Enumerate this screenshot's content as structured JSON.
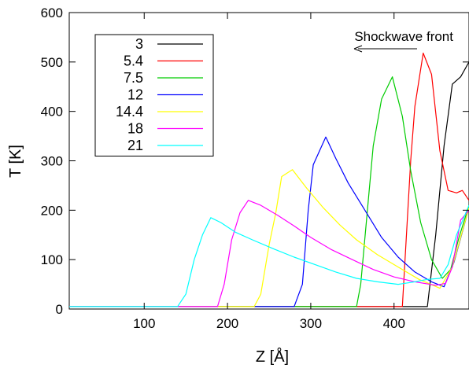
{
  "chart_data": {
    "type": "line",
    "title": "",
    "xlabel": "Z [Å]",
    "ylabel": "T [K]",
    "xlim": [
      10,
      490
    ],
    "ylim": [
      0,
      600
    ],
    "x_ticks": [
      100,
      200,
      300,
      400
    ],
    "y_ticks": [
      0,
      100,
      200,
      300,
      400,
      500,
      600
    ],
    "grid": false,
    "legend_position": "top-left",
    "annotation": {
      "text": "Shockwave front",
      "arrow_direction": "left"
    },
    "series": [
      {
        "name": "3",
        "color": "#000000",
        "points": [
          [
            10,
            5
          ],
          [
            430,
            5
          ],
          [
            440,
            5
          ],
          [
            450,
            150
          ],
          [
            460,
            330
          ],
          [
            470,
            455
          ],
          [
            480,
            470
          ],
          [
            490,
            500
          ]
        ]
      },
      {
        "name": "5.4",
        "color": "#ff0000",
        "points": [
          [
            10,
            5
          ],
          [
            410,
            5
          ],
          [
            420,
            300
          ],
          [
            425,
            410
          ],
          [
            435,
            518
          ],
          [
            445,
            475
          ],
          [
            455,
            320
          ],
          [
            465,
            240
          ],
          [
            475,
            235
          ],
          [
            482,
            240
          ],
          [
            490,
            220
          ]
        ]
      },
      {
        "name": "7.5",
        "color": "#00cc00",
        "points": [
          [
            10,
            5
          ],
          [
            355,
            5
          ],
          [
            360,
            50
          ],
          [
            368,
            200
          ],
          [
            375,
            330
          ],
          [
            385,
            425
          ],
          [
            398,
            470
          ],
          [
            410,
            390
          ],
          [
            420,
            280
          ],
          [
            432,
            175
          ],
          [
            445,
            100
          ],
          [
            458,
            62
          ],
          [
            468,
            80
          ],
          [
            478,
            145
          ],
          [
            490,
            210
          ]
        ]
      },
      {
        "name": "12",
        "color": "#0000ff",
        "points": [
          [
            10,
            5
          ],
          [
            280,
            5
          ],
          [
            290,
            50
          ],
          [
            297,
            200
          ],
          [
            303,
            292
          ],
          [
            318,
            348
          ],
          [
            330,
            305
          ],
          [
            345,
            255
          ],
          [
            365,
            200
          ],
          [
            385,
            145
          ],
          [
            405,
            105
          ],
          [
            425,
            75
          ],
          [
            445,
            55
          ],
          [
            460,
            45
          ],
          [
            472,
            95
          ],
          [
            490,
            205
          ]
        ]
      },
      {
        "name": "14.4",
        "color": "#ffff00",
        "points": [
          [
            10,
            5
          ],
          [
            232,
            5
          ],
          [
            240,
            30
          ],
          [
            250,
            130
          ],
          [
            258,
            195
          ],
          [
            265,
            268
          ],
          [
            278,
            282
          ],
          [
            295,
            245
          ],
          [
            315,
            205
          ],
          [
            335,
            170
          ],
          [
            355,
            140
          ],
          [
            380,
            110
          ],
          [
            405,
            85
          ],
          [
            430,
            60
          ],
          [
            455,
            42
          ],
          [
            470,
            85
          ],
          [
            490,
            205
          ]
        ]
      },
      {
        "name": "18",
        "color": "#ff00ff",
        "points": [
          [
            10,
            5
          ],
          [
            188,
            5
          ],
          [
            196,
            50
          ],
          [
            205,
            140
          ],
          [
            215,
            195
          ],
          [
            225,
            220
          ],
          [
            240,
            210
          ],
          [
            260,
            190
          ],
          [
            280,
            168
          ],
          [
            300,
            145
          ],
          [
            325,
            120
          ],
          [
            350,
            100
          ],
          [
            375,
            80
          ],
          [
            400,
            65
          ],
          [
            425,
            55
          ],
          [
            450,
            48
          ],
          [
            462,
            52
          ],
          [
            470,
            85
          ],
          [
            480,
            180
          ],
          [
            490,
            200
          ]
        ]
      },
      {
        "name": "21",
        "color": "#00ffff",
        "points": [
          [
            10,
            5
          ],
          [
            140,
            5
          ],
          [
            150,
            30
          ],
          [
            160,
            100
          ],
          [
            170,
            150
          ],
          [
            180,
            185
          ],
          [
            192,
            175
          ],
          [
            210,
            155
          ],
          [
            230,
            140
          ],
          [
            255,
            122
          ],
          [
            280,
            105
          ],
          [
            305,
            90
          ],
          [
            330,
            75
          ],
          [
            355,
            62
          ],
          [
            380,
            55
          ],
          [
            405,
            50
          ],
          [
            425,
            55
          ],
          [
            440,
            60
          ],
          [
            455,
            62
          ],
          [
            465,
            90
          ],
          [
            475,
            150
          ],
          [
            490,
            210
          ]
        ]
      }
    ]
  }
}
